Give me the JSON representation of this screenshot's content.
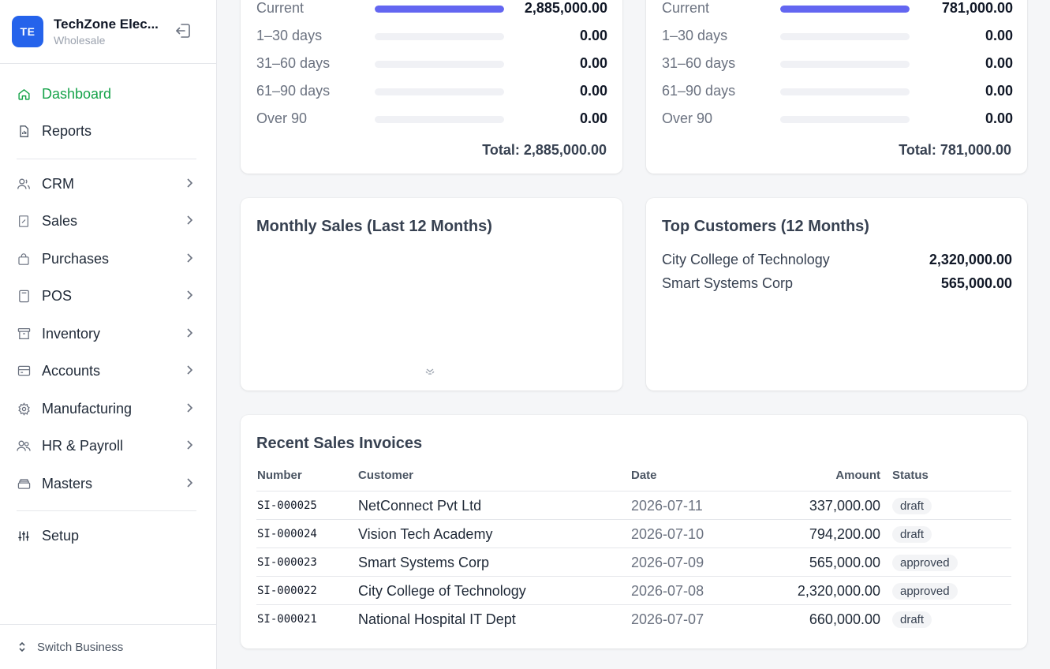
{
  "brand": {
    "initials": "TE",
    "name": "TechZone Elec...",
    "subtitle": "Wholesale"
  },
  "nav": {
    "items": [
      {
        "label": "Dashboard",
        "icon": "home-icon",
        "active": true
      },
      {
        "label": "Reports",
        "icon": "report-icon"
      },
      {
        "label": "CRM",
        "icon": "users-icon"
      },
      {
        "label": "Sales",
        "icon": "sales-icon"
      },
      {
        "label": "Purchases",
        "icon": "bag-icon"
      },
      {
        "label": "POS",
        "icon": "calculator-icon"
      },
      {
        "label": "Inventory",
        "icon": "archive-icon"
      },
      {
        "label": "Accounts",
        "icon": "card-icon"
      },
      {
        "label": "Manufacturing",
        "icon": "gear-icon"
      },
      {
        "label": "HR & Payroll",
        "icon": "people-icon"
      },
      {
        "label": "Masters",
        "icon": "stack-icon"
      },
      {
        "label": "Setup",
        "icon": "sliders-icon"
      }
    ],
    "switch_label": "Switch Business"
  },
  "receivables": {
    "rows": [
      {
        "label": "Current",
        "value": "2,885,000.00",
        "fill": 1.0
      },
      {
        "label": "1–30 days",
        "value": "0.00",
        "fill": 0
      },
      {
        "label": "31–60 days",
        "value": "0.00",
        "fill": 0
      },
      {
        "label": "61–90 days",
        "value": "0.00",
        "fill": 0
      },
      {
        "label": "Over 90",
        "value": "0.00",
        "fill": 0
      }
    ],
    "total": "Total: 2,885,000.00"
  },
  "payables": {
    "rows": [
      {
        "label": "Current",
        "value": "781,000.00",
        "fill": 1.0
      },
      {
        "label": "1–30 days",
        "value": "0.00",
        "fill": 0
      },
      {
        "label": "31–60 days",
        "value": "0.00",
        "fill": 0
      },
      {
        "label": "61–90 days",
        "value": "0.00",
        "fill": 0
      },
      {
        "label": "Over 90",
        "value": "0.00",
        "fill": 0
      }
    ],
    "total": "Total: 781,000.00"
  },
  "monthly_sales": {
    "title": "Monthly Sales (Last 12 Months)"
  },
  "top_customers": {
    "title": "Top Customers (12 Months)",
    "rows": [
      {
        "name": "City College of Technology",
        "amount": "2,320,000.00"
      },
      {
        "name": "Smart Systems Corp",
        "amount": "565,000.00"
      }
    ]
  },
  "invoices": {
    "title": "Recent Sales Invoices",
    "headers": {
      "number": "Number",
      "customer": "Customer",
      "date": "Date",
      "amount": "Amount",
      "status": "Status"
    },
    "rows": [
      {
        "number": "SI-000025",
        "customer": "NetConnect Pvt Ltd",
        "date": "2026-07-11",
        "amount": "337,000.00",
        "status": "draft"
      },
      {
        "number": "SI-000024",
        "customer": "Vision Tech Academy",
        "date": "2026-07-10",
        "amount": "794,200.00",
        "status": "draft"
      },
      {
        "number": "SI-000023",
        "customer": "Smart Systems Corp",
        "date": "2026-07-09",
        "amount": "565,000.00",
        "status": "approved"
      },
      {
        "number": "SI-000022",
        "customer": "City College of Technology",
        "date": "2026-07-08",
        "amount": "2,320,000.00",
        "status": "approved"
      },
      {
        "number": "SI-000021",
        "customer": "National Hospital IT Dept",
        "date": "2026-07-07",
        "amount": "660,000.00",
        "status": "draft"
      }
    ]
  },
  "colors": {
    "accent": "#2563eb",
    "active_nav": "#16a34a",
    "bar_fill": "#6366f1",
    "bar_track": "#f0f1f5"
  }
}
